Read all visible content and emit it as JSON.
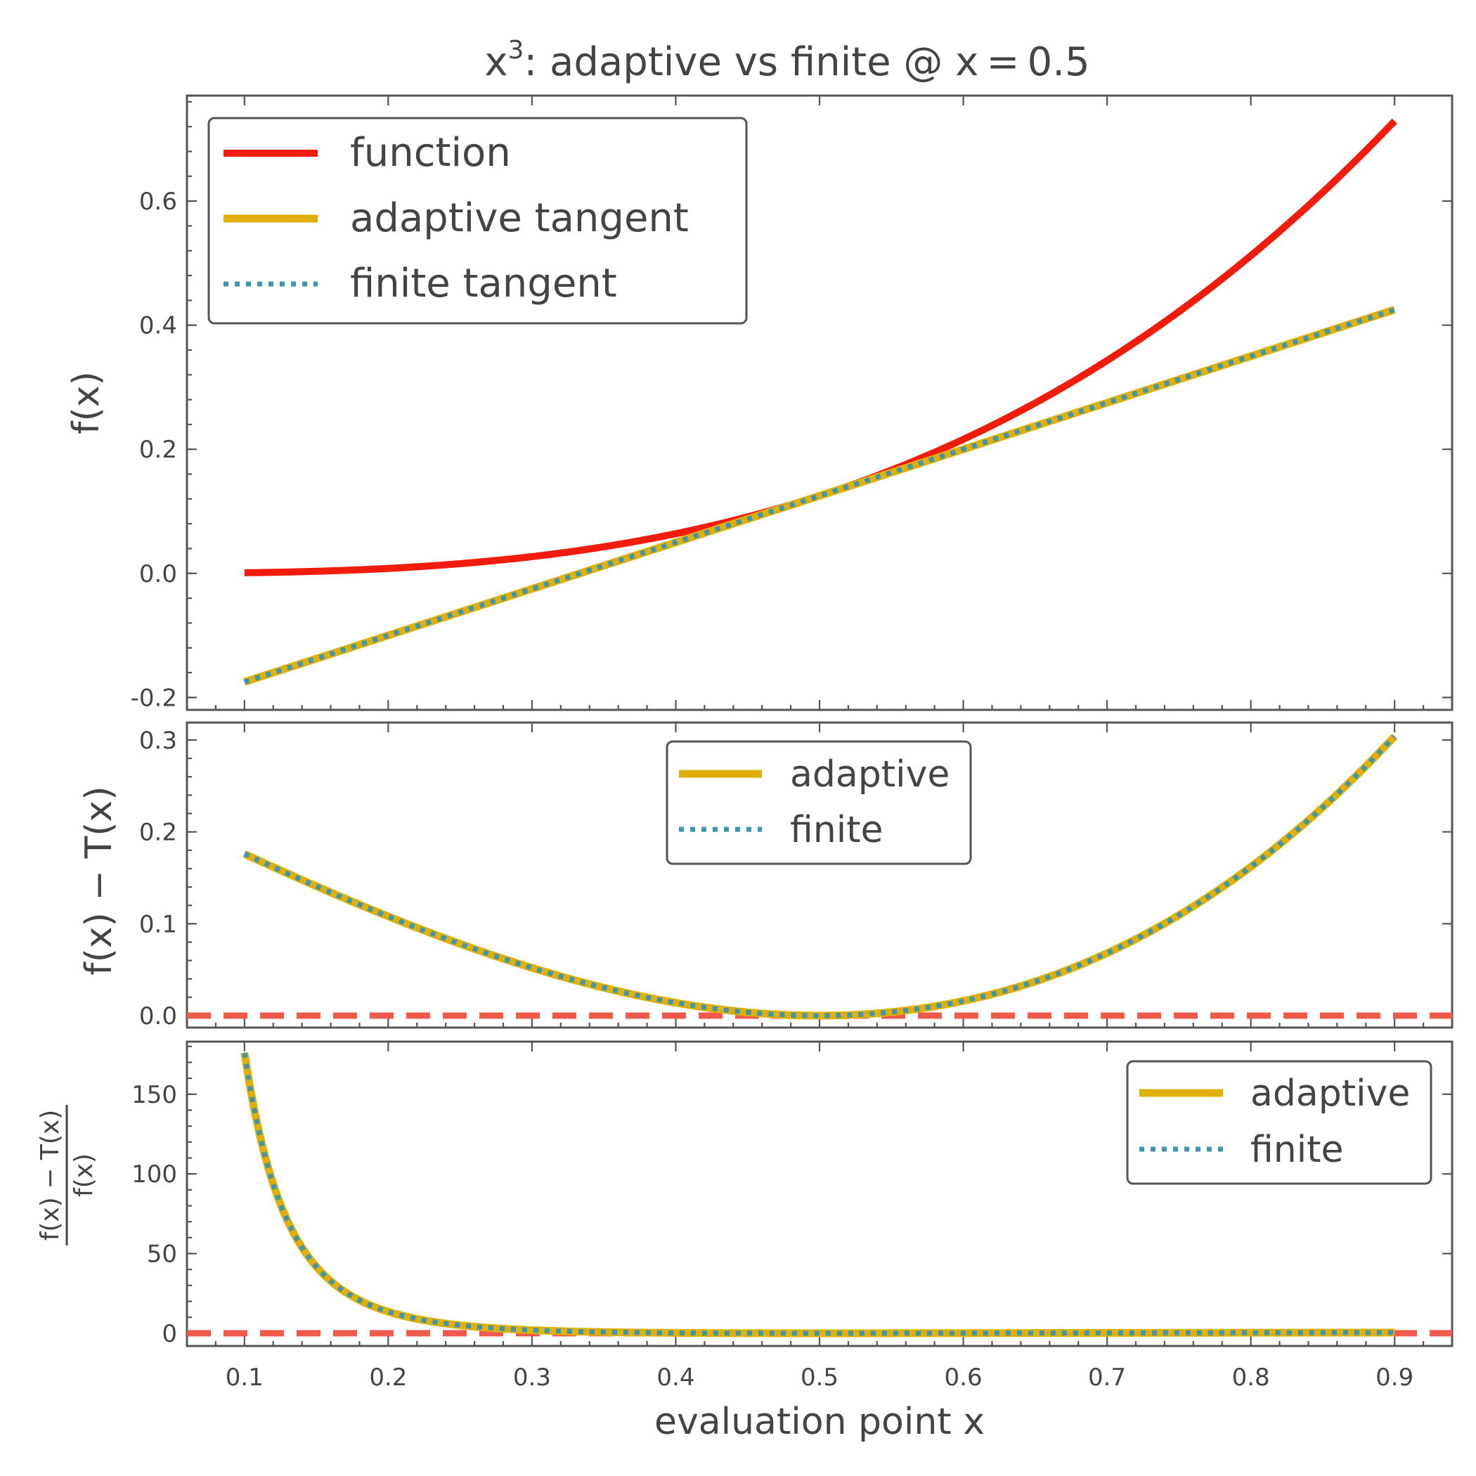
{
  "figure": {
    "title_base": "x",
    "title_sup": "3",
    "title_rest": ": adaptive vs finite @ x = 0.5",
    "xlabel": "evaluation point x"
  },
  "colors": {
    "function": "#f21c0c",
    "adaptive": "#e0b00a",
    "finite": "#3d96ad",
    "zero_line": "#ef5a4a"
  },
  "chart_data": [
    {
      "type": "line",
      "panel": "top",
      "ylabel": "f(x)",
      "xlim": [
        0.06,
        0.94
      ],
      "ylim": [
        -0.22,
        0.77
      ],
      "x_ticks": [
        0.1,
        0.2,
        0.3,
        0.4,
        0.5,
        0.6,
        0.7,
        0.8,
        0.9
      ],
      "y_ticks": [
        -0.2,
        0.0,
        0.2,
        0.4,
        0.6
      ],
      "y_tick_labels": [
        "-0.2",
        "0.0",
        "0.2",
        "0.4",
        "0.6"
      ],
      "legend": {
        "position": "top-left",
        "entries": [
          "function",
          "adaptive tangent",
          "finite tangent"
        ]
      },
      "series": [
        {
          "name": "function",
          "style": "solid",
          "formula": "x^3",
          "x_range": [
            0.1,
            0.9
          ],
          "y_at_ends": [
            0.001,
            0.729
          ]
        },
        {
          "name": "adaptive tangent",
          "style": "solid",
          "formula": "0.75x - 0.25",
          "x_range": [
            0.1,
            0.9
          ],
          "y_at_ends": [
            -0.175,
            0.425
          ]
        },
        {
          "name": "finite tangent",
          "style": "dotted",
          "formula": "0.75x - 0.25",
          "x_range": [
            0.1,
            0.9
          ],
          "y_at_ends": [
            -0.175,
            0.425
          ]
        }
      ]
    },
    {
      "type": "line",
      "panel": "middle",
      "ylabel": "f(x) − T(x)",
      "xlim": [
        0.06,
        0.94
      ],
      "ylim": [
        -0.013,
        0.319
      ],
      "y_ticks": [
        0.0,
        0.1,
        0.2,
        0.3
      ],
      "y_tick_labels": [
        "0.0",
        "0.1",
        "0.2",
        "0.3"
      ],
      "legend": {
        "position": "top-center",
        "entries": [
          "adaptive",
          "finite"
        ]
      },
      "reference_line": {
        "y": 0,
        "style": "dashed"
      },
      "series": [
        {
          "name": "adaptive",
          "style": "solid",
          "formula": "x^3 - 0.75x + 0.25",
          "x_range": [
            0.1,
            0.9
          ],
          "y_at_ends": [
            0.176,
            0.304
          ],
          "min": [
            0.5,
            0.0
          ]
        },
        {
          "name": "finite",
          "style": "dotted",
          "formula": "x^3 - 0.75x + 0.25",
          "x_range": [
            0.1,
            0.9
          ],
          "y_at_ends": [
            0.176,
            0.304
          ],
          "min": [
            0.5,
            0.0
          ]
        }
      ]
    },
    {
      "type": "line",
      "panel": "bottom",
      "ylabel_num": "f(x) − T(x)",
      "ylabel_den": "f(x)",
      "xlim": [
        0.06,
        0.94
      ],
      "ylim": [
        -8,
        183
      ],
      "x_ticks": [
        0.1,
        0.2,
        0.3,
        0.4,
        0.5,
        0.6,
        0.7,
        0.8,
        0.9
      ],
      "x_tick_labels": [
        "0.1",
        "0.2",
        "0.3",
        "0.4",
        "0.5",
        "0.6",
        "0.7",
        "0.8",
        "0.9"
      ],
      "y_ticks": [
        0,
        50,
        100,
        150
      ],
      "y_tick_labels": [
        "0",
        "50",
        "100",
        "150"
      ],
      "legend": {
        "position": "top-right",
        "entries": [
          "adaptive",
          "finite"
        ]
      },
      "reference_line": {
        "y": 0,
        "style": "dashed"
      },
      "series": [
        {
          "name": "adaptive",
          "style": "solid",
          "formula": "(x^3 - 0.75x + 0.25) / x^3",
          "x_range": [
            0.1,
            0.9
          ],
          "y_at_ends": [
            176,
            0.42
          ]
        },
        {
          "name": "finite",
          "style": "dotted",
          "formula": "(x^3 - 0.75x + 0.25) / x^3",
          "x_range": [
            0.1,
            0.9
          ],
          "y_at_ends": [
            176,
            0.42
          ]
        }
      ]
    }
  ]
}
